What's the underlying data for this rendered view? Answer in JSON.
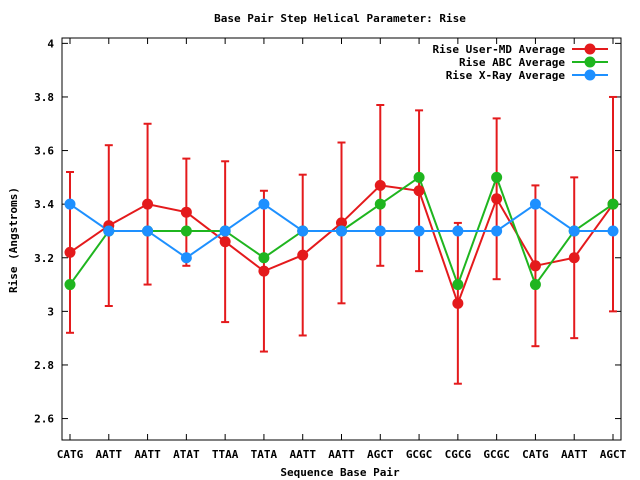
{
  "chart_data": {
    "type": "line",
    "title": "Base Pair Step Helical Parameter: Rise",
    "xlabel": "Sequence Base Pair",
    "ylabel": "Rise (Angstroms)",
    "categories": [
      "CATG",
      "AATT",
      "AATT",
      "ATAT",
      "TTAA",
      "TATA",
      "AATT",
      "AATT",
      "AGCT",
      "GCGC",
      "CGCG",
      "GCGC",
      "CATG",
      "AATT",
      "AGCT"
    ],
    "ylim": [
      2.52,
      4.02
    ],
    "yticks": [
      2.6,
      2.8,
      3,
      3.2,
      3.4,
      3.6,
      3.8,
      4
    ],
    "ytick_labels": [
      "2.6",
      "2.8",
      "3",
      "3.2",
      "3.4",
      "3.6",
      "3.8",
      "4"
    ],
    "grid": false,
    "legend_position": "top-right",
    "series": [
      {
        "name": "Rise User-MD Average",
        "color": "#e41a1c",
        "values": [
          3.22,
          3.32,
          3.4,
          3.37,
          3.26,
          3.15,
          3.21,
          3.33,
          3.47,
          3.45,
          3.03,
          3.42,
          3.17,
          3.2,
          3.4
        ],
        "error_low": [
          2.92,
          3.02,
          3.1,
          3.17,
          2.96,
          2.85,
          2.91,
          3.03,
          3.17,
          3.15,
          2.73,
          3.12,
          2.87,
          2.9,
          3.0
        ],
        "error_high": [
          3.52,
          3.62,
          3.7,
          3.57,
          3.56,
          3.45,
          3.51,
          3.63,
          3.77,
          3.75,
          3.33,
          3.72,
          3.47,
          3.5,
          3.8
        ]
      },
      {
        "name": "Rise ABC Average",
        "color": "#1fb51f",
        "values": [
          3.1,
          3.3,
          3.3,
          3.3,
          3.3,
          3.2,
          3.3,
          3.3,
          3.4,
          3.5,
          3.1,
          3.5,
          3.1,
          3.3,
          3.4
        ]
      },
      {
        "name": "Rise X-Ray Average",
        "color": "#1e90ff",
        "values": [
          3.4,
          3.3,
          3.3,
          3.2,
          3.3,
          3.4,
          3.3,
          3.3,
          3.3,
          3.3,
          3.3,
          3.3,
          3.4,
          3.3,
          3.3
        ]
      }
    ]
  }
}
